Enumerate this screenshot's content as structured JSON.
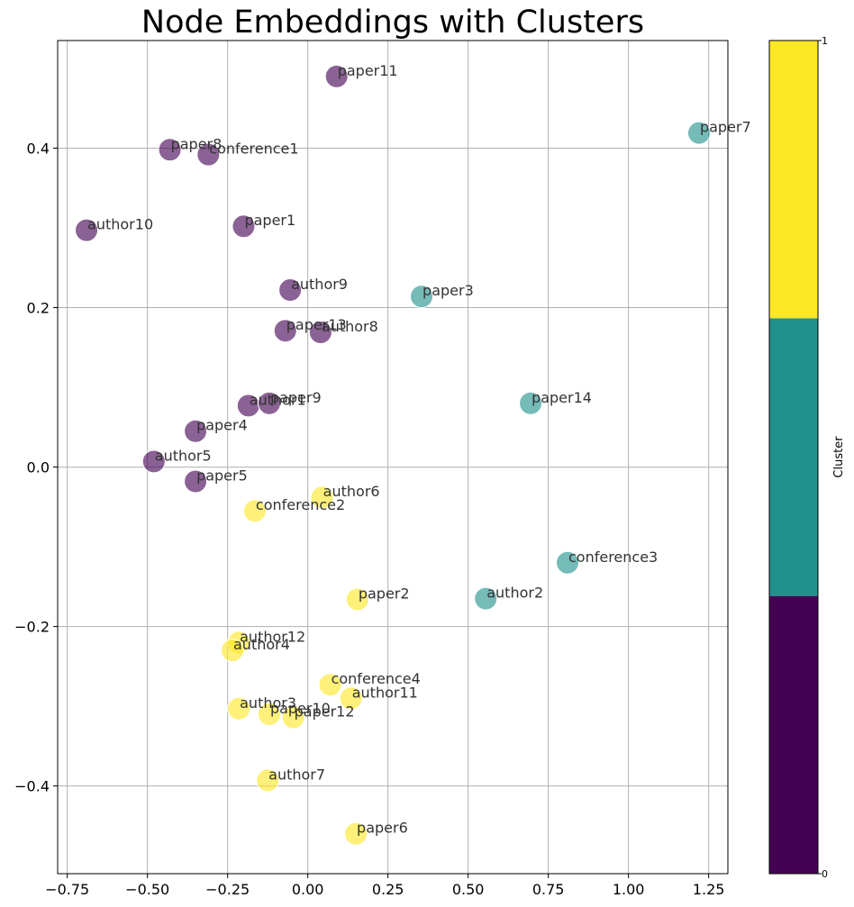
{
  "chart_data": {
    "type": "scatter",
    "title": "Node Embeddings with Clusters",
    "xlabel": "",
    "ylabel": "",
    "xlim": [
      -0.78,
      1.31
    ],
    "ylim": [
      -0.51,
      0.535
    ],
    "x_ticks": [
      -0.75,
      -0.5,
      -0.25,
      0.0,
      0.25,
      0.5,
      0.75,
      1.0,
      1.25
    ],
    "x_tick_labels": [
      "−0.75",
      "−0.50",
      "−0.25",
      "0.00",
      "0.25",
      "0.50",
      "0.75",
      "1.00",
      "1.25"
    ],
    "y_ticks": [
      -0.4,
      -0.2,
      0.0,
      0.2,
      0.4
    ],
    "y_tick_labels": [
      "−0.4",
      "−0.2",
      "0.0",
      "0.2",
      "0.4"
    ],
    "grid": true,
    "colorbar": {
      "label": "Cluster",
      "ticks": [
        0,
        1
      ],
      "tick_labels": [
        "0",
        "1"
      ],
      "colors": [
        "#440154",
        "#21918c",
        "#fde725"
      ]
    },
    "cluster_colors": [
      "#440154",
      "#21918c",
      "#fde725"
    ],
    "points": [
      {
        "label": "paper11",
        "x": 0.09,
        "y": 0.49,
        "cluster": 0
      },
      {
        "label": "paper8",
        "x": -0.43,
        "y": 0.398,
        "cluster": 0
      },
      {
        "label": "conference1",
        "x": -0.31,
        "y": 0.392,
        "cluster": 0
      },
      {
        "label": "author10",
        "x": -0.69,
        "y": 0.297,
        "cluster": 0
      },
      {
        "label": "paper1",
        "x": -0.2,
        "y": 0.302,
        "cluster": 0
      },
      {
        "label": "author9",
        "x": -0.055,
        "y": 0.222,
        "cluster": 0
      },
      {
        "label": "paper13",
        "x": -0.07,
        "y": 0.171,
        "cluster": 0
      },
      {
        "label": "author8",
        "x": 0.04,
        "y": 0.169,
        "cluster": 0
      },
      {
        "label": "author1",
        "x": -0.185,
        "y": 0.077,
        "cluster": 0
      },
      {
        "label": "paper9",
        "x": -0.12,
        "y": 0.08,
        "cluster": 0
      },
      {
        "label": "paper4",
        "x": -0.35,
        "y": 0.045,
        "cluster": 0
      },
      {
        "label": "author5",
        "x": -0.48,
        "y": 0.007,
        "cluster": 0
      },
      {
        "label": "paper5",
        "x": -0.35,
        "y": -0.018,
        "cluster": 0
      },
      {
        "label": "paper7",
        "x": 1.22,
        "y": 0.419,
        "cluster": 1
      },
      {
        "label": "paper3",
        "x": 0.355,
        "y": 0.214,
        "cluster": 1
      },
      {
        "label": "paper14",
        "x": 0.695,
        "y": 0.08,
        "cluster": 1
      },
      {
        "label": "conference3",
        "x": 0.81,
        "y": -0.12,
        "cluster": 1
      },
      {
        "label": "author2",
        "x": 0.555,
        "y": -0.165,
        "cluster": 1
      },
      {
        "label": "author6",
        "x": 0.045,
        "y": -0.038,
        "cluster": 2
      },
      {
        "label": "conference2",
        "x": -0.165,
        "y": -0.055,
        "cluster": 2
      },
      {
        "label": "paper2",
        "x": 0.155,
        "y": -0.166,
        "cluster": 2
      },
      {
        "label": "author12",
        "x": -0.215,
        "y": -0.22,
        "cluster": 2
      },
      {
        "label": "author4",
        "x": -0.235,
        "y": -0.23,
        "cluster": 2
      },
      {
        "label": "conference4",
        "x": 0.07,
        "y": -0.273,
        "cluster": 2
      },
      {
        "label": "author11",
        "x": 0.135,
        "y": -0.29,
        "cluster": 2
      },
      {
        "label": "author3",
        "x": -0.215,
        "y": -0.303,
        "cluster": 2
      },
      {
        "label": "paper10",
        "x": -0.12,
        "y": -0.31,
        "cluster": 2
      },
      {
        "label": "paper12",
        "x": -0.045,
        "y": -0.314,
        "cluster": 2
      },
      {
        "label": "author7",
        "x": -0.125,
        "y": -0.393,
        "cluster": 2
      },
      {
        "label": "paper6",
        "x": 0.15,
        "y": -0.46,
        "cluster": 2
      }
    ]
  }
}
